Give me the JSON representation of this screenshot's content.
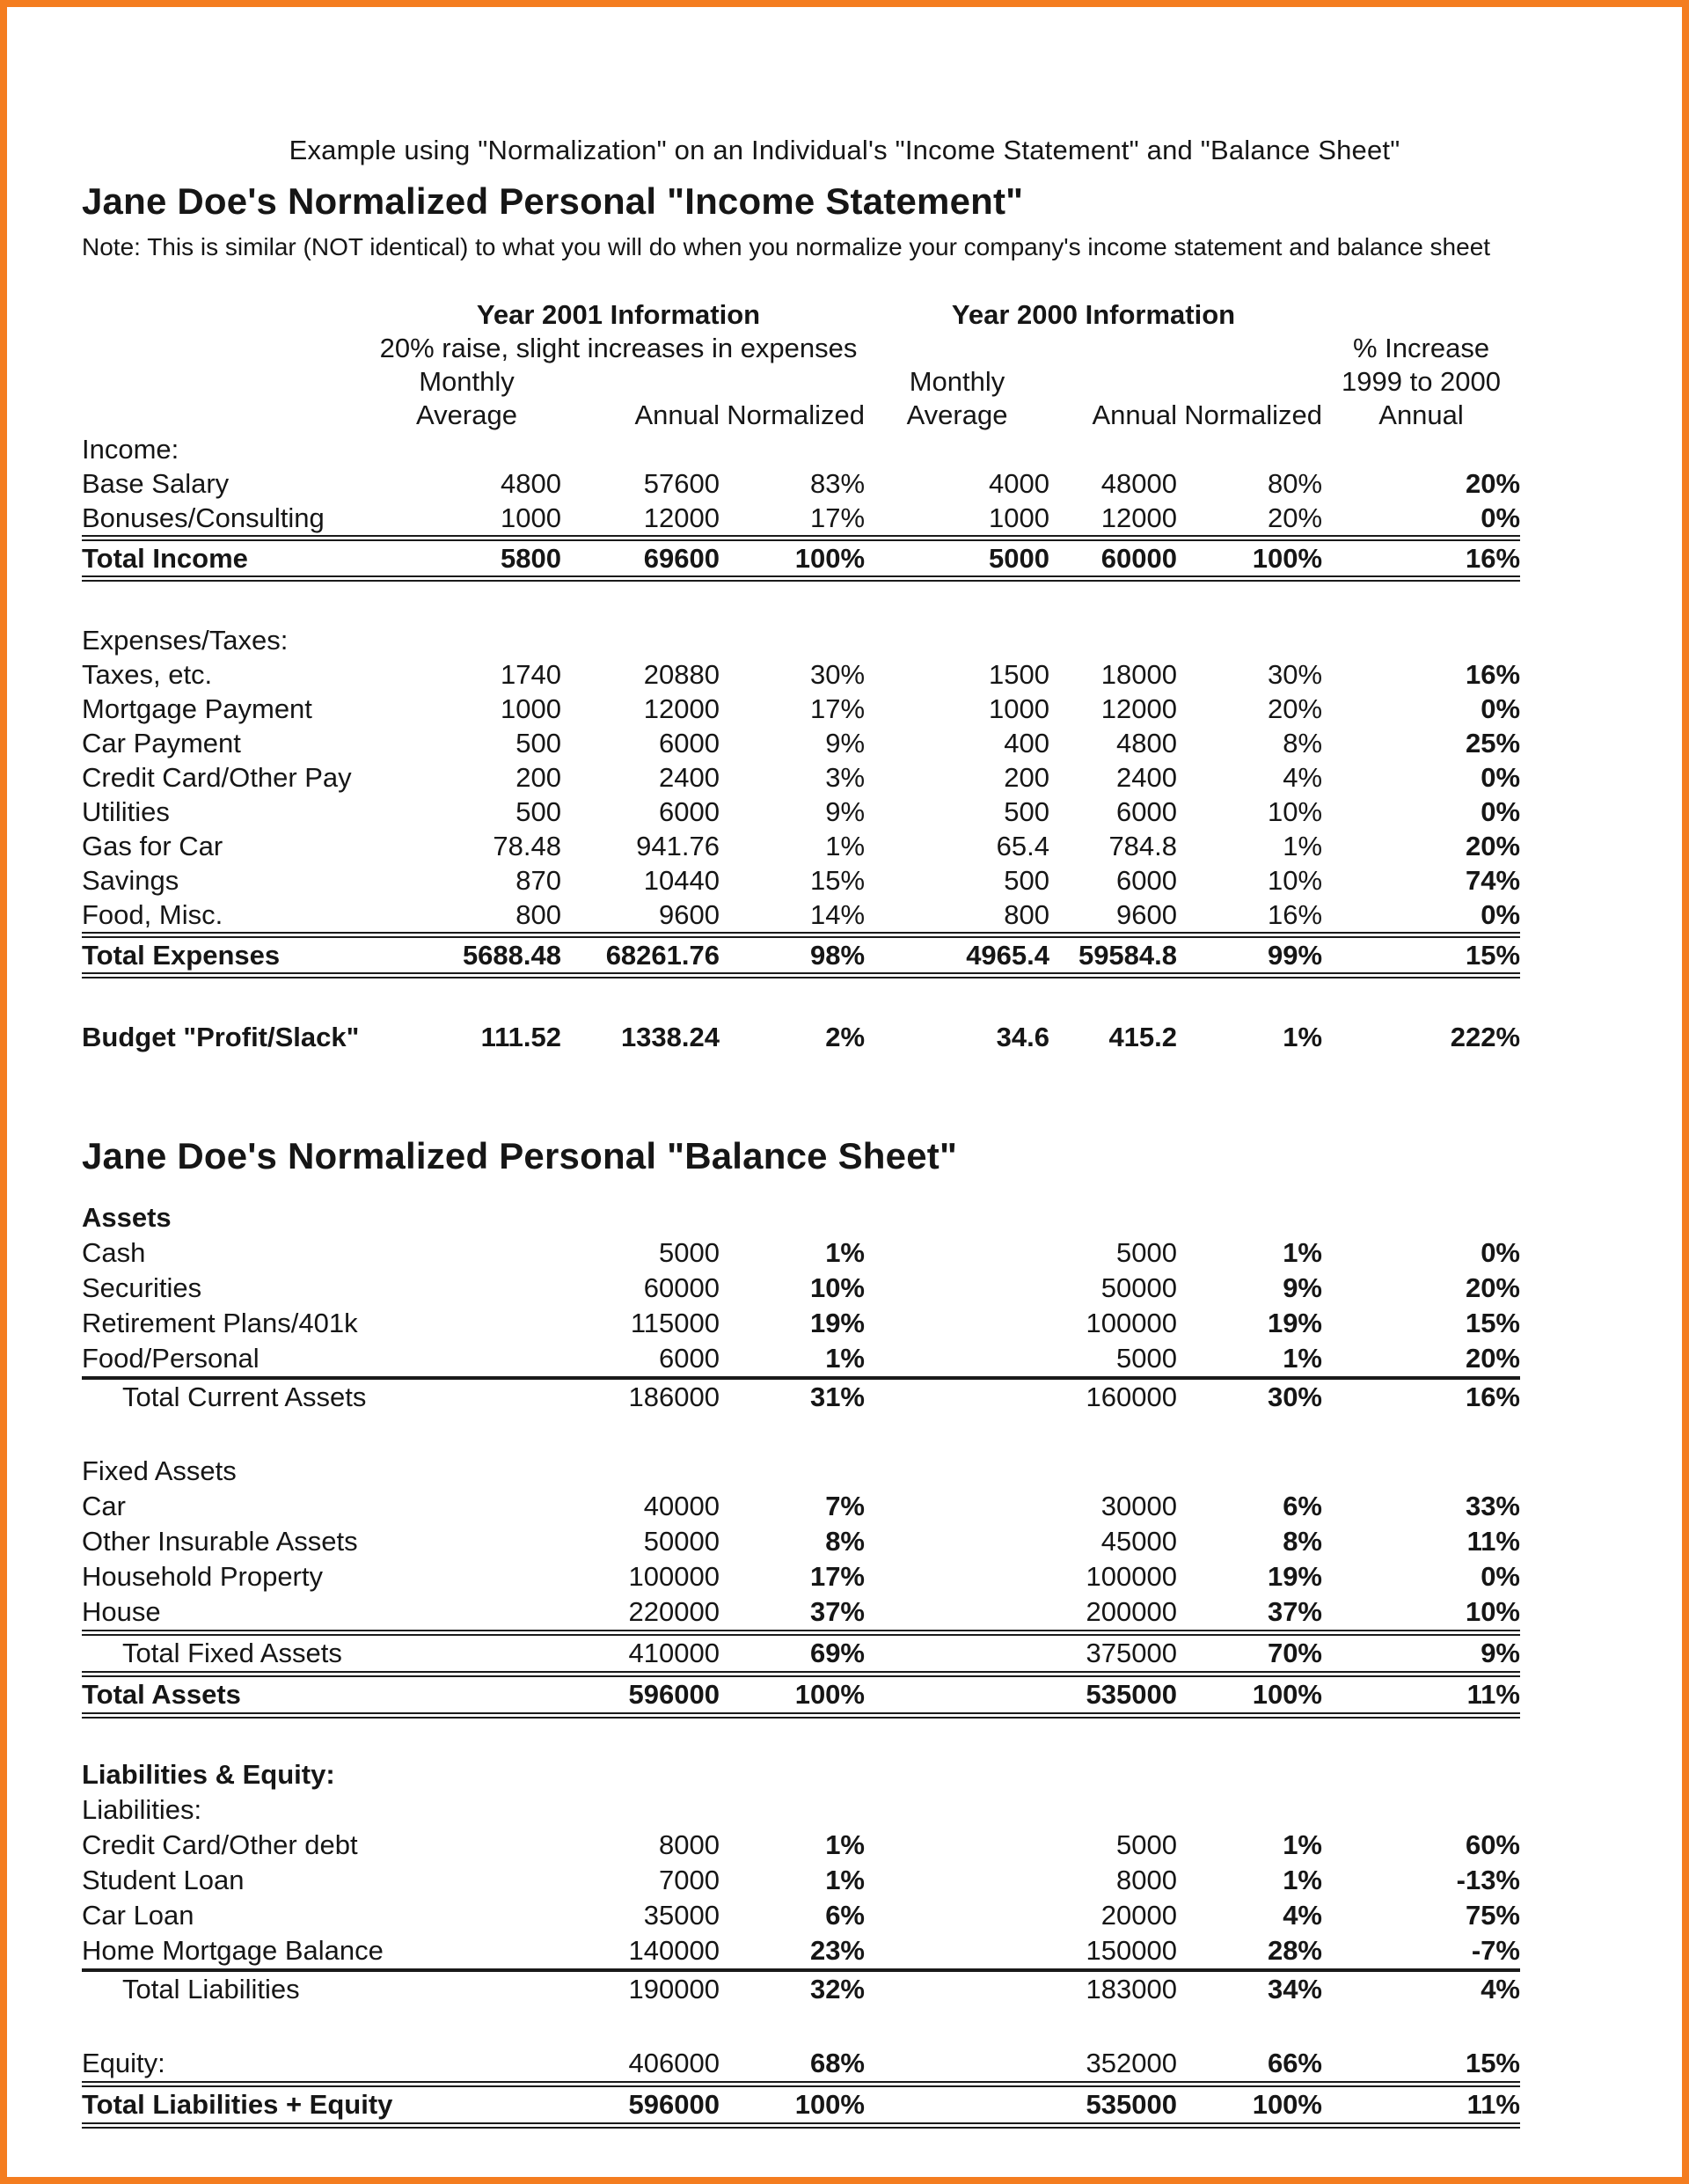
{
  "page": {
    "caption": "Example using \"Normalization\" on an Individual's \"Income Statement\" and \"Balance Sheet\"",
    "income_title": "Jane Doe's Normalized Personal \"Income Statement\"",
    "note": "Note:  This is similar (NOT identical) to what you will do when you normalize your company's income statement and balance sheet",
    "balance_title": "Jane Doe's Normalized Personal \"Balance Sheet\"",
    "accent_border_color": "#F47D20"
  },
  "headers": {
    "year2001": "Year 2001 Information",
    "year2001_subtitle": "20% raise, slight increases in expenses",
    "year2000": "Year 2000 Information",
    "pct_increase_line1": "% Increase",
    "pct_increase_line2": "1999 to 2000",
    "pct_increase_line3": "Annual",
    "monthly": "Monthly",
    "average": "Average",
    "annual": "Annual",
    "normalized": "Normalized"
  },
  "income_statement": {
    "rows": [
      {
        "label": "Income:"
      },
      {
        "label": "Base Salary",
        "c": [
          "4800",
          "57600",
          "83%",
          "4000",
          "48000",
          "80%",
          "20%"
        ],
        "bold": [
          6
        ]
      },
      {
        "label": "Bonuses/Consulting",
        "c": [
          "1000",
          "12000",
          "17%",
          "1000",
          "12000",
          "20%",
          "0%"
        ],
        "bold": [
          6
        ]
      },
      {
        "label": "Total Income",
        "label_bold": true,
        "c": [
          "5800",
          "69600",
          "100%",
          "5000",
          "60000",
          "100%",
          "16%"
        ],
        "bold": "all",
        "rule_top": "double",
        "rule_bottom": "double"
      },
      {
        "spacer": true
      },
      {
        "label": "Expenses/Taxes:"
      },
      {
        "label": "Taxes, etc.",
        "c": [
          "1740",
          "20880",
          "30%",
          "1500",
          "18000",
          "30%",
          "16%"
        ],
        "bold": [
          6
        ]
      },
      {
        "label": "Mortgage Payment",
        "c": [
          "1000",
          "12000",
          "17%",
          "1000",
          "12000",
          "20%",
          "0%"
        ],
        "bold": [
          6
        ]
      },
      {
        "label": "Car Payment",
        "c": [
          "500",
          "6000",
          "9%",
          "400",
          "4800",
          "8%",
          "25%"
        ],
        "bold": [
          6
        ]
      },
      {
        "label": "Credit Card/Other Pay",
        "c": [
          "200",
          "2400",
          "3%",
          "200",
          "2400",
          "4%",
          "0%"
        ],
        "bold": [
          6
        ]
      },
      {
        "label": "Utilities",
        "c": [
          "500",
          "6000",
          "9%",
          "500",
          "6000",
          "10%",
          "0%"
        ],
        "bold": [
          6
        ]
      },
      {
        "label": "Gas for Car",
        "c": [
          "78.48",
          "941.76",
          "1%",
          "65.4",
          "784.8",
          "1%",
          "20%"
        ],
        "bold": [
          6
        ]
      },
      {
        "label": "Savings",
        "c": [
          "870",
          "10440",
          "15%",
          "500",
          "6000",
          "10%",
          "74%"
        ],
        "bold": [
          6
        ]
      },
      {
        "label": "Food, Misc.",
        "c": [
          "800",
          "9600",
          "14%",
          "800",
          "9600",
          "16%",
          "0%"
        ],
        "bold": [
          6
        ]
      },
      {
        "label": "Total Expenses",
        "label_bold": true,
        "c": [
          "5688.48",
          "68261.76",
          "98%",
          "4965.4",
          "59584.8",
          "99%",
          "15%"
        ],
        "bold": "all",
        "rule_top": "double",
        "rule_bottom": "double"
      },
      {
        "spacer": true
      },
      {
        "label": "Budget \"Profit/Slack\"",
        "label_bold": true,
        "c": [
          "111.52",
          "1338.24",
          "2%",
          "34.6",
          "415.2",
          "1%",
          "222%"
        ],
        "bold": "all"
      }
    ]
  },
  "balance_sheet": {
    "rows": [
      {
        "label": "Assets",
        "label_bold": true
      },
      {
        "label": "Cash",
        "c": [
          "",
          "5000",
          "1%",
          "",
          "5000",
          "1%",
          "0%"
        ],
        "bold": [
          2,
          5,
          6
        ]
      },
      {
        "label": "Securities",
        "c": [
          "",
          "60000",
          "10%",
          "",
          "50000",
          "9%",
          "20%"
        ],
        "bold": [
          2,
          5,
          6
        ]
      },
      {
        "label": "Retirement Plans/401k",
        "c": [
          "",
          "115000",
          "19%",
          "",
          "100000",
          "19%",
          "15%"
        ],
        "bold": [
          2,
          5,
          6
        ]
      },
      {
        "label": "Food/Personal",
        "c": [
          "",
          "6000",
          "1%",
          "",
          "5000",
          "1%",
          "20%"
        ],
        "bold": [
          2,
          5,
          6
        ]
      },
      {
        "label": "Total Current Assets",
        "indent": true,
        "c": [
          "",
          "186000",
          "31%",
          "",
          "160000",
          "30%",
          "16%"
        ],
        "bold": [
          2,
          5,
          6
        ],
        "rule_top": "single"
      },
      {
        "spacer": true
      },
      {
        "label": "Fixed Assets"
      },
      {
        "label": "Car",
        "c": [
          "",
          "40000",
          "7%",
          "",
          "30000",
          "6%",
          "33%"
        ],
        "bold": [
          2,
          5,
          6
        ]
      },
      {
        "label": "Other Insurable Assets",
        "c": [
          "",
          "50000",
          "8%",
          "",
          "45000",
          "8%",
          "11%"
        ],
        "bold": [
          2,
          5,
          6
        ]
      },
      {
        "label": "Household Property",
        "c": [
          "",
          "100000",
          "17%",
          "",
          "100000",
          "19%",
          "0%"
        ],
        "bold": [
          2,
          5,
          6
        ]
      },
      {
        "label": "House",
        "c": [
          "",
          "220000",
          "37%",
          "",
          "200000",
          "37%",
          "10%"
        ],
        "bold": [
          2,
          5,
          6
        ]
      },
      {
        "label": "Total Fixed Assets",
        "indent": true,
        "c": [
          "",
          "410000",
          "69%",
          "",
          "375000",
          "70%",
          "9%"
        ],
        "bold": [
          2,
          5,
          6
        ],
        "rule_top": "double",
        "rule_bottom": "double"
      },
      {
        "label": "Total Assets",
        "label_bold": true,
        "c": [
          "",
          "596000",
          "100%",
          "",
          "535000",
          "100%",
          "11%"
        ],
        "bold": "all",
        "rule_bottom": "double"
      },
      {
        "spacer": true
      },
      {
        "label": "Liabilities & Equity:",
        "label_bold": true
      },
      {
        "label": "Liabilities:"
      },
      {
        "label": "Credit Card/Other debt",
        "c": [
          "",
          "8000",
          "1%",
          "",
          "5000",
          "1%",
          "60%"
        ],
        "bold": [
          2,
          5,
          6
        ]
      },
      {
        "label": "Student Loan",
        "c": [
          "",
          "7000",
          "1%",
          "",
          "8000",
          "1%",
          "-13%"
        ],
        "bold": [
          2,
          5,
          6
        ]
      },
      {
        "label": "Car Loan",
        "c": [
          "",
          "35000",
          "6%",
          "",
          "20000",
          "4%",
          "75%"
        ],
        "bold": [
          2,
          5,
          6
        ]
      },
      {
        "label": "Home Mortgage Balance",
        "c": [
          "",
          "140000",
          "23%",
          "",
          "150000",
          "28%",
          "-7%"
        ],
        "bold": [
          2,
          5,
          6
        ]
      },
      {
        "label": "Total Liabilities",
        "indent": true,
        "c": [
          "",
          "190000",
          "32%",
          "",
          "183000",
          "34%",
          "4%"
        ],
        "bold": [
          2,
          5,
          6
        ],
        "rule_top": "single"
      },
      {
        "spacer": true
      },
      {
        "label": "Equity:",
        "c": [
          "",
          "406000",
          "68%",
          "",
          "352000",
          "66%",
          "15%"
        ],
        "bold": [
          2,
          5,
          6
        ]
      },
      {
        "label": "Total Liabilities + Equity",
        "label_bold": true,
        "c": [
          "",
          "596000",
          "100%",
          "",
          "535000",
          "100%",
          "11%"
        ],
        "bold": "all",
        "rule_top": "double",
        "rule_bottom": "double"
      }
    ]
  }
}
